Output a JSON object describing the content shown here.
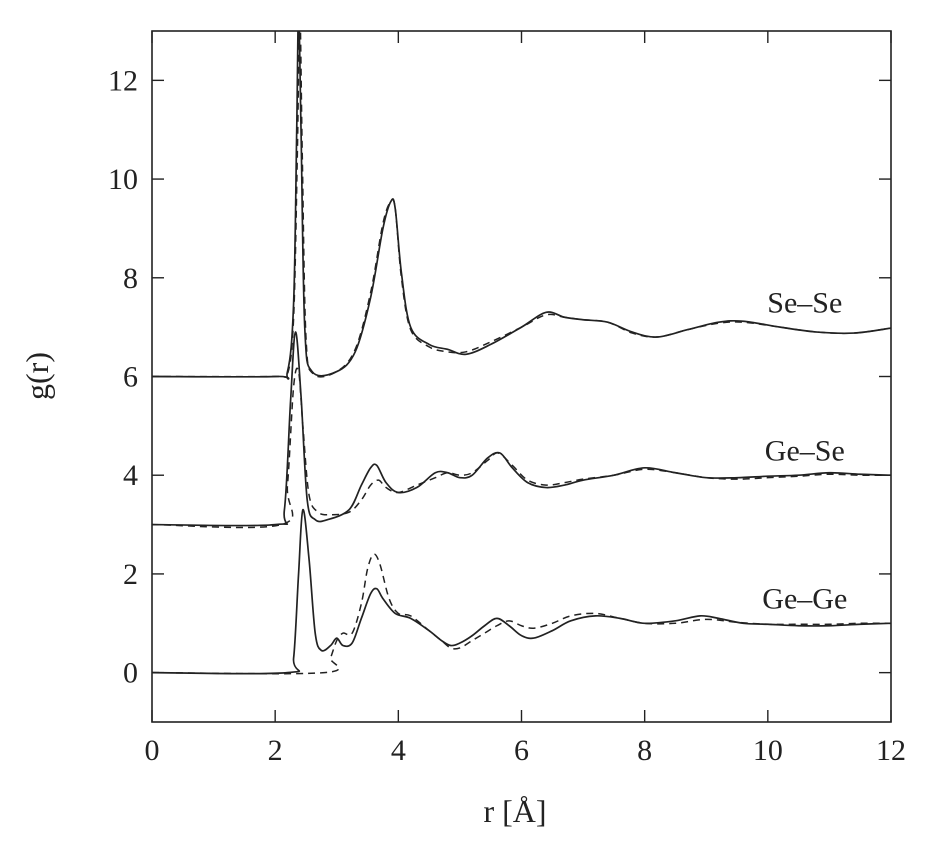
{
  "chart_data": {
    "type": "line",
    "title": "",
    "xlabel": "r [Å]",
    "ylabel": "g(r)",
    "xlim": [
      0,
      12
    ],
    "ylim": [
      -1,
      13
    ],
    "xticks": [
      "0",
      "2",
      "4",
      "6",
      "8",
      "10",
      "12"
    ],
    "yticks": [
      "0",
      "2",
      "4",
      "6",
      "8",
      "10",
      "12"
    ],
    "grid": false,
    "series_labels": [
      {
        "name": "Se–Se",
        "x": 10.6,
        "y": 7.3
      },
      {
        "name": "Ge–Se",
        "x": 10.6,
        "y": 4.3
      },
      {
        "name": "Ge–Ge",
        "x": 10.6,
        "y": 1.3
      }
    ],
    "series": [
      {
        "group": "Se–Se",
        "style": "solid",
        "x": [
          0,
          2.0,
          2.2,
          2.3,
          2.35,
          2.38,
          2.42,
          2.48,
          2.6,
          3.0,
          3.3,
          3.55,
          3.75,
          3.88,
          3.95,
          4.05,
          4.2,
          4.5,
          4.8,
          5.1,
          5.5,
          6.0,
          6.4,
          6.7,
          7.0,
          7.4,
          7.8,
          8.2,
          8.7,
          9.2,
          9.6,
          10.2,
          10.8,
          11.4,
          12.0
        ],
        "y": [
          6.0,
          6.0,
          6.1,
          7.5,
          11.0,
          13.4,
          11.0,
          7.0,
          6.1,
          6.1,
          6.5,
          7.6,
          9.0,
          9.55,
          9.4,
          8.1,
          7.0,
          6.65,
          6.55,
          6.45,
          6.65,
          7.0,
          7.3,
          7.2,
          7.15,
          7.1,
          6.9,
          6.8,
          6.95,
          7.1,
          7.12,
          7.0,
          6.9,
          6.88,
          6.98
        ]
      },
      {
        "group": "Se–Se",
        "style": "dashed",
        "x": [
          0,
          2.0,
          2.2,
          2.3,
          2.36,
          2.4,
          2.44,
          2.5,
          2.62,
          3.0,
          3.3,
          3.55,
          3.75,
          3.88,
          3.95,
          4.05,
          4.2,
          4.5,
          4.8,
          5.1,
          5.5,
          6.0,
          6.4,
          6.7,
          7.0,
          7.4,
          7.8,
          8.2,
          8.7,
          9.2,
          9.6,
          10.2,
          10.8,
          11.4,
          12.0
        ],
        "y": [
          6.0,
          6.0,
          6.05,
          7.2,
          10.5,
          13.4,
          10.5,
          6.8,
          6.05,
          6.1,
          6.55,
          7.7,
          9.1,
          9.55,
          9.4,
          8.0,
          6.95,
          6.6,
          6.5,
          6.5,
          6.7,
          7.0,
          7.25,
          7.2,
          7.15,
          7.1,
          6.88,
          6.8,
          6.95,
          7.08,
          7.1,
          7.0,
          6.9,
          6.88,
          6.98
        ]
      },
      {
        "group": "Ge–Se",
        "style": "solid",
        "x": [
          0,
          2.0,
          2.15,
          2.25,
          2.33,
          2.42,
          2.52,
          2.65,
          2.85,
          3.2,
          3.4,
          3.55,
          3.65,
          3.8,
          4.0,
          4.3,
          4.6,
          4.8,
          5.0,
          5.2,
          5.45,
          5.65,
          5.85,
          6.1,
          6.4,
          6.7,
          7.0,
          7.5,
          8.0,
          8.5,
          9.0,
          9.5,
          10.0,
          10.5,
          11.0,
          11.5,
          12.0
        ],
        "y": [
          3.0,
          3.0,
          3.3,
          5.5,
          6.9,
          5.6,
          3.5,
          3.1,
          3.1,
          3.3,
          3.8,
          4.15,
          4.2,
          3.85,
          3.65,
          3.75,
          4.05,
          4.05,
          3.95,
          4.0,
          4.35,
          4.45,
          4.15,
          3.85,
          3.75,
          3.8,
          3.9,
          4.0,
          4.15,
          4.05,
          3.95,
          3.95,
          3.98,
          4.0,
          4.05,
          4.02,
          4.0
        ]
      },
      {
        "group": "Ge–Se",
        "style": "dashed",
        "x": [
          0,
          2.1,
          2.2,
          2.3,
          2.38,
          2.45,
          2.55,
          2.7,
          2.9,
          3.2,
          3.4,
          3.55,
          3.68,
          3.8,
          4.0,
          4.3,
          4.6,
          4.8,
          5.0,
          5.2,
          5.45,
          5.62,
          5.85,
          6.1,
          6.4,
          6.7,
          7.0,
          7.5,
          8.0,
          8.5,
          9.0,
          9.5,
          10.0,
          10.5,
          11.0,
          11.5,
          12.0
        ],
        "y": [
          3.0,
          3.0,
          3.8,
          5.8,
          6.1,
          5.0,
          3.6,
          3.25,
          3.2,
          3.25,
          3.5,
          3.8,
          3.9,
          3.75,
          3.65,
          3.8,
          3.95,
          4.05,
          4.0,
          4.05,
          4.3,
          4.45,
          4.2,
          3.9,
          3.8,
          3.85,
          3.92,
          4.0,
          4.12,
          4.05,
          3.95,
          3.92,
          3.95,
          3.98,
          4.02,
          4.0,
          4.0
        ]
      },
      {
        "group": "Ge–Ge",
        "style": "solid",
        "x": [
          0,
          2.2,
          2.3,
          2.38,
          2.45,
          2.55,
          2.65,
          2.75,
          2.9,
          3.0,
          3.1,
          3.25,
          3.4,
          3.55,
          3.65,
          3.75,
          3.95,
          4.2,
          4.5,
          4.7,
          4.85,
          5.0,
          5.2,
          5.4,
          5.6,
          5.8,
          6.0,
          6.2,
          6.5,
          6.8,
          7.2,
          7.6,
          8.0,
          8.5,
          8.9,
          9.2,
          9.6,
          10.0,
          10.5,
          11.0,
          11.5,
          12.0
        ],
        "y": [
          0.0,
          0.0,
          0.3,
          2.0,
          3.3,
          2.3,
          0.8,
          0.45,
          0.55,
          0.7,
          0.55,
          0.6,
          1.1,
          1.6,
          1.7,
          1.5,
          1.2,
          1.1,
          0.85,
          0.65,
          0.55,
          0.6,
          0.75,
          0.95,
          1.1,
          0.95,
          0.75,
          0.7,
          0.85,
          1.05,
          1.15,
          1.1,
          1.0,
          1.05,
          1.15,
          1.1,
          1.0,
          0.98,
          0.95,
          0.95,
          0.98,
          1.0
        ]
      },
      {
        "group": "Ge–Ge",
        "style": "dashed",
        "x": [
          0,
          2.8,
          2.9,
          3.0,
          3.1,
          3.25,
          3.4,
          3.5,
          3.6,
          3.7,
          3.85,
          4.0,
          4.2,
          4.5,
          4.7,
          4.85,
          5.0,
          5.2,
          5.4,
          5.6,
          5.8,
          6.0,
          6.2,
          6.5,
          6.8,
          7.2,
          7.6,
          8.0,
          8.5,
          9.0,
          9.5,
          10.0,
          10.5,
          11.0,
          11.5,
          12.0
        ],
        "y": [
          0.0,
          0.0,
          0.3,
          0.65,
          0.8,
          0.8,
          1.4,
          2.1,
          2.4,
          2.2,
          1.5,
          1.2,
          1.15,
          0.85,
          0.65,
          0.5,
          0.5,
          0.65,
          0.8,
          0.95,
          1.05,
          0.95,
          0.9,
          1.0,
          1.15,
          1.2,
          1.1,
          1.0,
          1.0,
          1.08,
          1.02,
          0.98,
          0.98,
          0.98,
          1.0,
          1.0
        ]
      }
    ]
  }
}
